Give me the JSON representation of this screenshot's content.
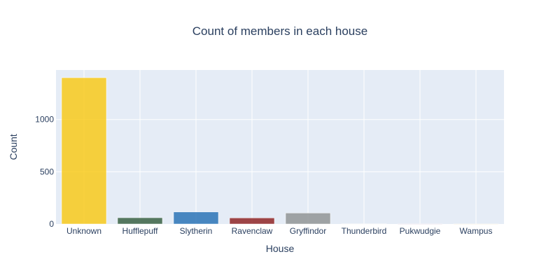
{
  "chart_data": {
    "type": "bar",
    "title": "Count of members in each house",
    "xlabel": "House",
    "ylabel": "Count",
    "categories": [
      "Unknown",
      "Hufflepuff",
      "Slytherin",
      "Ravenclaw",
      "Gryffindor",
      "Thunderbird",
      "Pukwudgie",
      "Wampus"
    ],
    "values": [
      1400,
      60,
      115,
      58,
      105,
      2,
      1,
      1
    ],
    "colors": [
      "#f9c80e",
      "#2f5a3a",
      "#1f6db3",
      "#8b1a1a",
      "#8c9090",
      "#c9a0a0",
      "#7a4a7a",
      "#c8b040"
    ],
    "opacity": 0.8,
    "ylim": [
      0,
      1473.7
    ],
    "yticks": [
      0,
      500,
      1000
    ],
    "ytick_labels": [
      "0",
      "500",
      "1000"
    ],
    "grid": true,
    "plot_bgcolor": "#e5ecf6",
    "gridcolor": "#ffffff"
  }
}
